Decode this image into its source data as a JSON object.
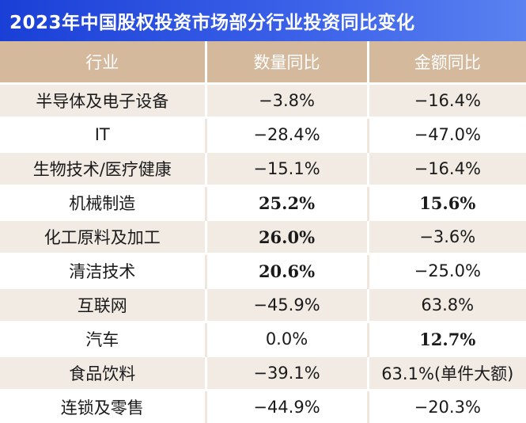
{
  "title": "2023年中国股权投资市场部分行业投资同比变化",
  "headers": {
    "industry": "行业",
    "count_yoy": "数量同比",
    "amount_yoy": "金额同比"
  },
  "rows": [
    {
      "industry": "半导体及电子设备",
      "count_yoy": "−3.8%",
      "amount_yoy": "−16.4%",
      "count_bold": false,
      "amount_bold": false
    },
    {
      "industry": "IT",
      "count_yoy": "−28.4%",
      "amount_yoy": "−47.0%",
      "count_bold": false,
      "amount_bold": false
    },
    {
      "industry": "生物技术/医疗健康",
      "count_yoy": "−15.1%",
      "amount_yoy": "−16.4%",
      "count_bold": false,
      "amount_bold": false
    },
    {
      "industry": "机械制造",
      "count_yoy": "25.2%",
      "amount_yoy": "15.6%",
      "count_bold": true,
      "amount_bold": true
    },
    {
      "industry": "化工原料及加工",
      "count_yoy": "26.0%",
      "amount_yoy": "−3.6%",
      "count_bold": true,
      "amount_bold": false
    },
    {
      "industry": "清洁技术",
      "count_yoy": "20.6%",
      "amount_yoy": "−25.0%",
      "count_bold": true,
      "amount_bold": false
    },
    {
      "industry": "互联网",
      "count_yoy": "−45.9%",
      "amount_yoy": "63.8%",
      "count_bold": false,
      "amount_bold": false
    },
    {
      "industry": "汽车",
      "count_yoy": "0.0%",
      "amount_yoy": "12.7%",
      "count_bold": false,
      "amount_bold": true
    },
    {
      "industry": "食品饮料",
      "count_yoy": "−39.1%",
      "amount_yoy": "63.1%(单件大额)",
      "count_bold": false,
      "amount_bold": false
    },
    {
      "industry": "连锁及零售",
      "count_yoy": "−44.9%",
      "amount_yoy": "−20.3%",
      "count_bold": false,
      "amount_bold": false
    }
  ],
  "colors": {
    "title_bg_start": "#1a3fd6",
    "title_bg_end": "#5b82f0",
    "header_bg": "#d4b99d",
    "row_alt_bg": "#f2ebe4"
  }
}
